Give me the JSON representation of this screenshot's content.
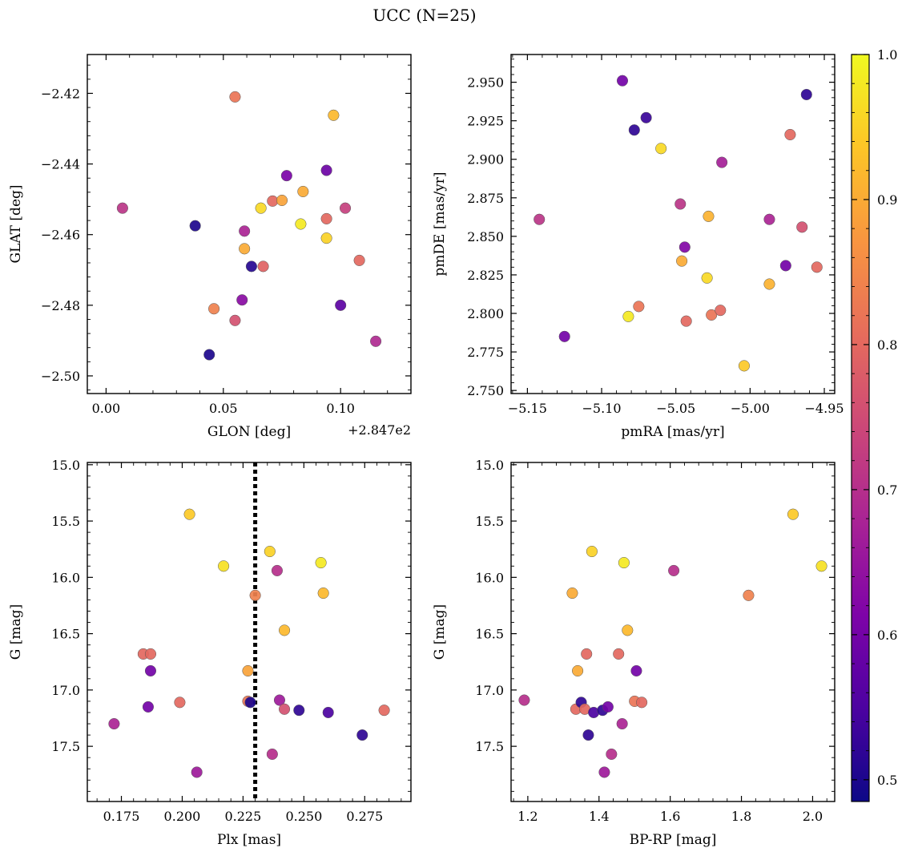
{
  "figure": {
    "title": "UCC (N=25)",
    "colormap": "plasma",
    "colorbar": {
      "range": [
        0.485,
        1.0
      ],
      "ticks": [
        0.5,
        0.6,
        0.7,
        0.8,
        0.9,
        1.0
      ],
      "tick_labels": [
        "0.5",
        "0.6",
        "0.7",
        "0.8",
        "0.9",
        "1.0"
      ]
    }
  },
  "chart_data": [
    {
      "type": "scatter",
      "xlabel": "GLON [deg]",
      "ylabel": "GLAT [deg]",
      "offset_label": "+2.847e2",
      "xlim": [
        -0.008,
        0.13
      ],
      "ylim": [
        -2.505,
        -2.409
      ],
      "invert_y": false,
      "xticks": [
        0.0,
        0.05,
        0.1
      ],
      "xtick_labels": [
        "0.00",
        "0.05",
        "0.10"
      ],
      "yticks": [
        -2.42,
        -2.44,
        -2.46,
        -2.48,
        -2.5
      ],
      "ytick_labels": [
        "−2.42",
        "−2.44",
        "−2.46",
        "−2.48",
        "−2.50"
      ],
      "points": [
        {
          "x": 0.007,
          "y": -2.4525,
          "c": 0.71
        },
        {
          "x": 0.038,
          "y": -2.4575,
          "c": 0.5
        },
        {
          "x": 0.044,
          "y": -2.494,
          "c": 0.5
        },
        {
          "x": 0.046,
          "y": -2.481,
          "c": 0.84
        },
        {
          "x": 0.055,
          "y": -2.421,
          "c": 0.82
        },
        {
          "x": 0.055,
          "y": -2.4843,
          "c": 0.76
        },
        {
          "x": 0.058,
          "y": -2.4785,
          "c": 0.63
        },
        {
          "x": 0.059,
          "y": -2.459,
          "c": 0.68
        },
        {
          "x": 0.059,
          "y": -2.464,
          "c": 0.9
        },
        {
          "x": 0.062,
          "y": -2.469,
          "c": 0.51
        },
        {
          "x": 0.066,
          "y": -2.4525,
          "c": 0.96
        },
        {
          "x": 0.067,
          "y": -2.469,
          "c": 0.79
        },
        {
          "x": 0.071,
          "y": -2.4505,
          "c": 0.8
        },
        {
          "x": 0.075,
          "y": -2.4503,
          "c": 0.89
        },
        {
          "x": 0.077,
          "y": -2.4433,
          "c": 0.61
        },
        {
          "x": 0.083,
          "y": -2.457,
          "c": 0.98
        },
        {
          "x": 0.084,
          "y": -2.4478,
          "c": 0.9
        },
        {
          "x": 0.094,
          "y": -2.4418,
          "c": 0.59
        },
        {
          "x": 0.094,
          "y": -2.4555,
          "c": 0.8
        },
        {
          "x": 0.094,
          "y": -2.461,
          "c": 0.95
        },
        {
          "x": 0.097,
          "y": -2.4262,
          "c": 0.92
        },
        {
          "x": 0.1,
          "y": -2.48,
          "c": 0.57
        },
        {
          "x": 0.102,
          "y": -2.4525,
          "c": 0.73
        },
        {
          "x": 0.108,
          "y": -2.4673,
          "c": 0.8
        },
        {
          "x": 0.115,
          "y": -2.4902,
          "c": 0.69
        }
      ]
    },
    {
      "type": "scatter",
      "xlabel": "pmRA [mas/yr]",
      "ylabel": "pmDE [mas/yr]",
      "xlim": [
        -5.161,
        -4.943
      ],
      "ylim": [
        2.748,
        2.968
      ],
      "invert_y": false,
      "xticks": [
        -5.15,
        -5.1,
        -5.05,
        -5.0,
        -4.95
      ],
      "xtick_labels": [
        "−5.15",
        "−5.10",
        "−5.05",
        "−5.00",
        "−4.95"
      ],
      "yticks": [
        2.75,
        2.775,
        2.8,
        2.825,
        2.85,
        2.875,
        2.9,
        2.925,
        2.95
      ],
      "ytick_labels": [
        "2.750",
        "2.775",
        "2.800",
        "2.825",
        "2.850",
        "2.875",
        "2.900",
        "2.925",
        "2.950"
      ],
      "points": [
        {
          "x": -5.142,
          "y": 2.861,
          "c": 0.71
        },
        {
          "x": -5.125,
          "y": 2.785,
          "c": 0.6
        },
        {
          "x": -5.086,
          "y": 2.951,
          "c": 0.6
        },
        {
          "x": -5.082,
          "y": 2.798,
          "c": 0.98
        },
        {
          "x": -5.078,
          "y": 2.919,
          "c": 0.52
        },
        {
          "x": -5.075,
          "y": 2.8045,
          "c": 0.82
        },
        {
          "x": -5.07,
          "y": 2.927,
          "c": 0.53
        },
        {
          "x": -5.06,
          "y": 2.907,
          "c": 0.96
        },
        {
          "x": -5.047,
          "y": 2.871,
          "c": 0.71
        },
        {
          "x": -5.046,
          "y": 2.834,
          "c": 0.9
        },
        {
          "x": -5.044,
          "y": 2.843,
          "c": 0.62
        },
        {
          "x": -5.043,
          "y": 2.795,
          "c": 0.8
        },
        {
          "x": -5.029,
          "y": 2.823,
          "c": 0.96
        },
        {
          "x": -5.028,
          "y": 2.863,
          "c": 0.91
        },
        {
          "x": -5.026,
          "y": 2.799,
          "c": 0.82
        },
        {
          "x": -5.02,
          "y": 2.802,
          "c": 0.8
        },
        {
          "x": -5.019,
          "y": 2.898,
          "c": 0.67
        },
        {
          "x": -5.004,
          "y": 2.766,
          "c": 0.94
        },
        {
          "x": -4.987,
          "y": 2.819,
          "c": 0.91
        },
        {
          "x": -4.987,
          "y": 2.861,
          "c": 0.68
        },
        {
          "x": -4.976,
          "y": 2.831,
          "c": 0.6
        },
        {
          "x": -4.973,
          "y": 2.916,
          "c": 0.8
        },
        {
          "x": -4.965,
          "y": 2.856,
          "c": 0.76
        },
        {
          "x": -4.962,
          "y": 2.942,
          "c": 0.52
        },
        {
          "x": -4.955,
          "y": 2.83,
          "c": 0.8
        }
      ]
    },
    {
      "type": "scatter",
      "xlabel": "Plx [mas]",
      "ylabel": "G [mag]",
      "xlim": [
        0.161,
        0.294
      ],
      "ylim": [
        14.98,
        17.99
      ],
      "invert_y": true,
      "xticks": [
        0.175,
        0.2,
        0.225,
        0.25,
        0.275
      ],
      "xtick_labels": [
        "0.175",
        "0.200",
        "0.225",
        "0.250",
        "0.275"
      ],
      "yticks": [
        15.0,
        15.5,
        16.0,
        16.5,
        17.0,
        17.5
      ],
      "ytick_labels": [
        "15.0",
        "15.5",
        "16.0",
        "16.5",
        "17.0",
        "17.5"
      ],
      "vline": {
        "x": 0.23,
        "style": "dotted"
      },
      "points": [
        {
          "x": 0.172,
          "y": 17.3,
          "c": 0.68
        },
        {
          "x": 0.184,
          "y": 16.68,
          "c": 0.8
        },
        {
          "x": 0.187,
          "y": 16.68,
          "c": 0.8
        },
        {
          "x": 0.186,
          "y": 17.15,
          "c": 0.6
        },
        {
          "x": 0.187,
          "y": 16.83,
          "c": 0.6
        },
        {
          "x": 0.199,
          "y": 17.11,
          "c": 0.8
        },
        {
          "x": 0.203,
          "y": 15.44,
          "c": 0.94
        },
        {
          "x": 0.206,
          "y": 17.73,
          "c": 0.66
        },
        {
          "x": 0.217,
          "y": 15.9,
          "c": 0.97
        },
        {
          "x": 0.227,
          "y": 17.1,
          "c": 0.82
        },
        {
          "x": 0.227,
          "y": 16.83,
          "c": 0.89
        },
        {
          "x": 0.228,
          "y": 17.11,
          "c": 0.5
        },
        {
          "x": 0.23,
          "y": 16.16,
          "c": 0.84
        },
        {
          "x": 0.236,
          "y": 15.77,
          "c": 0.95
        },
        {
          "x": 0.237,
          "y": 17.57,
          "c": 0.7
        },
        {
          "x": 0.239,
          "y": 15.94,
          "c": 0.7
        },
        {
          "x": 0.24,
          "y": 17.09,
          "c": 0.66
        },
        {
          "x": 0.242,
          "y": 17.17,
          "c": 0.76
        },
        {
          "x": 0.242,
          "y": 16.47,
          "c": 0.92
        },
        {
          "x": 0.248,
          "y": 17.18,
          "c": 0.52
        },
        {
          "x": 0.257,
          "y": 15.87,
          "c": 0.98
        },
        {
          "x": 0.258,
          "y": 16.14,
          "c": 0.92
        },
        {
          "x": 0.26,
          "y": 17.2,
          "c": 0.55
        },
        {
          "x": 0.274,
          "y": 17.4,
          "c": 0.52
        },
        {
          "x": 0.283,
          "y": 17.18,
          "c": 0.8
        }
      ]
    },
    {
      "type": "scatter",
      "xlabel": "BP-RP [mag]",
      "ylabel": "G [mag]",
      "xlim": [
        1.153,
        2.062
      ],
      "ylim": [
        14.98,
        17.99
      ],
      "invert_y": true,
      "xticks": [
        1.2,
        1.4,
        1.6,
        1.8,
        2.0
      ],
      "xtick_labels": [
        "1.2",
        "1.4",
        "1.6",
        "1.8",
        "2.0"
      ],
      "yticks": [
        15.0,
        15.5,
        16.0,
        16.5,
        17.0,
        17.5
      ],
      "ytick_labels": [
        "15.0",
        "15.5",
        "16.0",
        "16.5",
        "17.0",
        "17.5"
      ],
      "points": [
        {
          "x": 1.19,
          "y": 17.09,
          "c": 0.7
        },
        {
          "x": 1.325,
          "y": 16.14,
          "c": 0.9
        },
        {
          "x": 1.335,
          "y": 17.17,
          "c": 0.8
        },
        {
          "x": 1.34,
          "y": 16.83,
          "c": 0.9
        },
        {
          "x": 1.35,
          "y": 17.11,
          "c": 0.52
        },
        {
          "x": 1.36,
          "y": 17.17,
          "c": 0.8
        },
        {
          "x": 1.365,
          "y": 16.68,
          "c": 0.8
        },
        {
          "x": 1.37,
          "y": 17.4,
          "c": 0.52
        },
        {
          "x": 1.38,
          "y": 15.77,
          "c": 0.95
        },
        {
          "x": 1.385,
          "y": 17.2,
          "c": 0.55
        },
        {
          "x": 1.41,
          "y": 17.18,
          "c": 0.52
        },
        {
          "x": 1.415,
          "y": 17.73,
          "c": 0.66
        },
        {
          "x": 1.425,
          "y": 17.15,
          "c": 0.6
        },
        {
          "x": 1.435,
          "y": 17.57,
          "c": 0.7
        },
        {
          "x": 1.455,
          "y": 16.68,
          "c": 0.8
        },
        {
          "x": 1.465,
          "y": 17.3,
          "c": 0.68
        },
        {
          "x": 1.47,
          "y": 15.87,
          "c": 0.98
        },
        {
          "x": 1.48,
          "y": 16.47,
          "c": 0.92
        },
        {
          "x": 1.5,
          "y": 17.1,
          "c": 0.82
        },
        {
          "x": 1.505,
          "y": 16.83,
          "c": 0.6
        },
        {
          "x": 1.52,
          "y": 17.11,
          "c": 0.8
        },
        {
          "x": 1.61,
          "y": 15.94,
          "c": 0.7
        },
        {
          "x": 1.82,
          "y": 16.16,
          "c": 0.84
        },
        {
          "x": 1.945,
          "y": 15.44,
          "c": 0.94
        },
        {
          "x": 2.025,
          "y": 15.9,
          "c": 0.97
        }
      ]
    }
  ]
}
